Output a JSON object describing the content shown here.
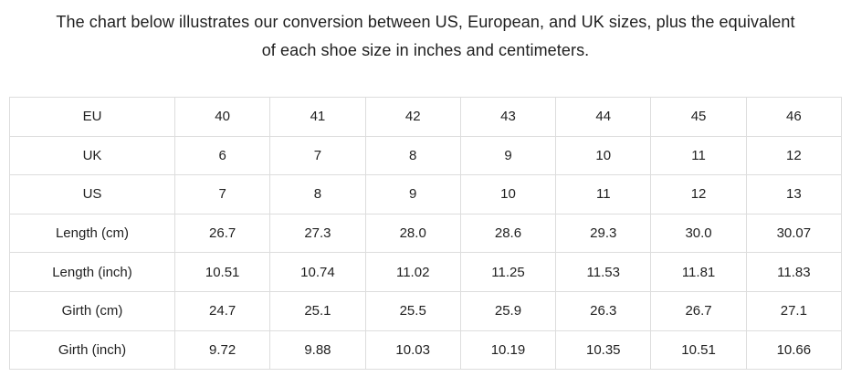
{
  "title": {
    "line1": "The chart below illustrates our conversion between US, European, and UK sizes, plus the equivalent",
    "line2": "of each shoe size in inches and centimeters."
  },
  "table": {
    "rows": [
      {
        "label": "EU",
        "values": [
          "40",
          "41",
          "42",
          "43",
          "44",
          "45",
          "46"
        ]
      },
      {
        "label": "UK",
        "values": [
          "6",
          "7",
          "8",
          "9",
          "10",
          "11",
          "12"
        ]
      },
      {
        "label": "US",
        "values": [
          "7",
          "8",
          "9",
          "10",
          "11",
          "12",
          "13"
        ]
      },
      {
        "label": "Length (cm)",
        "values": [
          "26.7",
          "27.3",
          "28.0",
          "28.6",
          "29.3",
          "30.0",
          "30.07"
        ]
      },
      {
        "label": "Length (inch)",
        "values": [
          "10.51",
          "10.74",
          "11.02",
          "11.25",
          "11.53",
          "11.81",
          "11.83"
        ]
      },
      {
        "label": "Girth (cm)",
        "values": [
          "24.7",
          "25.1",
          "25.5",
          "25.9",
          "26.3",
          "26.7",
          "27.1"
        ]
      },
      {
        "label": "Girth (inch)",
        "values": [
          "9.72",
          "9.88",
          "10.03",
          "10.19",
          "10.35",
          "10.51",
          "10.66"
        ]
      }
    ]
  },
  "chart_data": {
    "type": "table",
    "row_headers": [
      "EU",
      "UK",
      "US",
      "Length (cm)",
      "Length (inch)",
      "Girth (cm)",
      "Girth (inch)"
    ],
    "rows": [
      [
        "40",
        "41",
        "42",
        "43",
        "44",
        "45",
        "46"
      ],
      [
        "6",
        "7",
        "8",
        "9",
        "10",
        "11",
        "12"
      ],
      [
        "7",
        "8",
        "9",
        "10",
        "11",
        "12",
        "13"
      ],
      [
        "26.7",
        "27.3",
        "28.0",
        "28.6",
        "29.3",
        "30.0",
        "30.07"
      ],
      [
        "10.51",
        "10.74",
        "11.02",
        "11.25",
        "11.53",
        "11.81",
        "11.83"
      ],
      [
        "24.7",
        "25.1",
        "25.5",
        "25.9",
        "26.3",
        "26.7",
        "27.1"
      ],
      [
        "9.72",
        "9.88",
        "10.03",
        "10.19",
        "10.35",
        "10.51",
        "10.66"
      ]
    ],
    "title": "The chart below illustrates our conversion between US, European, and UK sizes, plus the equivalent of each shoe size in inches and centimeters."
  },
  "colors": {
    "text": "#1f1f1f",
    "border": "#dddddd",
    "background": "#ffffff"
  }
}
